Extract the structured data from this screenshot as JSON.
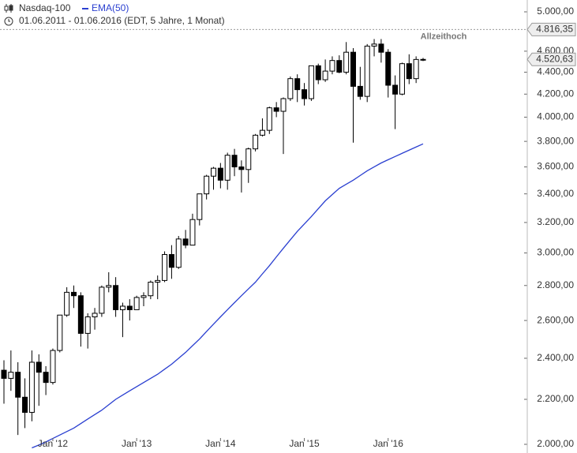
{
  "chart_data": {
    "type": "candlestick",
    "title": "Nasdaq-100",
    "subtitle": "01.06.2011 - 01.06.2016 (EDT, 5 Jahre, 1 Monat)",
    "log_scale": true,
    "categories": [
      null,
      null,
      null,
      null,
      null,
      null,
      null,
      "Jan '12",
      null,
      null,
      null,
      null,
      null,
      null,
      null,
      null,
      null,
      null,
      null,
      "Jan '13",
      null,
      null,
      null,
      null,
      null,
      null,
      null,
      null,
      null,
      null,
      null,
      "Jan '14",
      null,
      null,
      null,
      null,
      null,
      null,
      null,
      null,
      null,
      null,
      null,
      "Jan '15",
      null,
      null,
      null,
      null,
      null,
      null,
      null,
      null,
      null,
      null,
      null,
      "Jan '16",
      null,
      null,
      null,
      null,
      null
    ],
    "open": [
      2340,
      2300,
      2330,
      2210,
      2140,
      2380,
      2330,
      2280,
      2440,
      2630,
      2760,
      2740,
      2530,
      2620,
      2640,
      2790,
      2800,
      2660,
      2680,
      2660,
      2730,
      2740,
      2820,
      2830,
      2990,
      2910,
      3090,
      3050,
      3220,
      3400,
      3530,
      3590,
      3500,
      3690,
      3600,
      3580,
      3740,
      3850,
      3890,
      4080,
      4050,
      4160,
      4340,
      4240,
      4160,
      4460,
      4330,
      4410,
      4510,
      4400,
      4590,
      4270,
      4180,
      4650,
      4670,
      4590,
      4280,
      4200,
      4480,
      4340,
      4515
    ],
    "high": [
      2390,
      2440,
      2380,
      2300,
      2440,
      2420,
      2360,
      2450,
      2630,
      2790,
      2800,
      2760,
      2640,
      2670,
      2800,
      2880,
      2850,
      2700,
      2720,
      2740,
      2760,
      2830,
      2860,
      3010,
      3050,
      3110,
      3150,
      3260,
      3400,
      3540,
      3600,
      3630,
      3710,
      3740,
      3650,
      3750,
      3860,
      3990,
      4090,
      4130,
      4170,
      4360,
      4380,
      4300,
      4460,
      4480,
      4520,
      4550,
      4560,
      4690,
      4630,
      4450,
      4670,
      4720,
      4720,
      4620,
      4370,
      4490,
      4570,
      4550,
      4535
    ],
    "low": [
      2180,
      2240,
      2040,
      2070,
      2100,
      2170,
      2220,
      2270,
      2430,
      2620,
      2670,
      2460,
      2450,
      2550,
      2620,
      2760,
      2620,
      2510,
      2600,
      2660,
      2680,
      2720,
      2720,
      2820,
      2840,
      2900,
      3030,
      3050,
      3180,
      3360,
      3430,
      3440,
      3430,
      3530,
      3410,
      3480,
      3720,
      3840,
      3860,
      4000,
      3700,
      4140,
      4130,
      4100,
      4140,
      4290,
      4310,
      4380,
      4390,
      4380,
      3790,
      4150,
      4130,
      4550,
      4490,
      4170,
      3900,
      4190,
      4290,
      4300,
      4505
    ],
    "close": [
      2300,
      2330,
      2210,
      2140,
      2380,
      2330,
      2280,
      2440,
      2630,
      2760,
      2740,
      2530,
      2620,
      2640,
      2790,
      2800,
      2660,
      2680,
      2660,
      2730,
      2740,
      2820,
      2830,
      2990,
      2910,
      3090,
      3050,
      3220,
      3400,
      3530,
      3590,
      3500,
      3690,
      3600,
      3580,
      3740,
      3850,
      3890,
      4080,
      4050,
      4160,
      4340,
      4240,
      4160,
      4460,
      4330,
      4410,
      4510,
      4400,
      4590,
      4270,
      4180,
      4650,
      4670,
      4590,
      4280,
      4200,
      4480,
      4340,
      4520,
      4520.63
    ],
    "ema": {
      "name": "EMA(50)",
      "color": "#2a3fd0",
      "values": [
        null,
        null,
        null,
        null,
        1985,
        1997,
        2010,
        2025,
        2040,
        2055,
        2070,
        2090,
        2110,
        2130,
        2150,
        2175,
        2200,
        2220,
        2240,
        2260,
        2280,
        2300,
        2320,
        2345,
        2370,
        2400,
        2430,
        2465,
        2500,
        2540,
        2580,
        2620,
        2660,
        2700,
        2740,
        2780,
        2820,
        2870,
        2920,
        2975,
        3030,
        3085,
        3140,
        3190,
        3240,
        3295,
        3350,
        3395,
        3440,
        3470,
        3500,
        3535,
        3570,
        3600,
        3630,
        3655,
        3680,
        3705,
        3730,
        3755,
        3780
      ]
    },
    "ylim": [
      2000,
      5000
    ],
    "yticks": [
      {
        "value": 2000,
        "label": "2.000,00"
      },
      {
        "value": 2200,
        "label": "2.200,00"
      },
      {
        "value": 2400,
        "label": "2.400,00"
      },
      {
        "value": 2600,
        "label": "2.600,00"
      },
      {
        "value": 2800,
        "label": "2.800,00"
      },
      {
        "value": 3000,
        "label": "3.000,00"
      },
      {
        "value": 3200,
        "label": "3.200,00"
      },
      {
        "value": 3400,
        "label": "3.400,00"
      },
      {
        "value": 3600,
        "label": "3.600,00"
      },
      {
        "value": 3800,
        "label": "3.800,00"
      },
      {
        "value": 4000,
        "label": "4.000,00"
      },
      {
        "value": 4200,
        "label": "4.200,00"
      },
      {
        "value": 4400,
        "label": "4.400,00"
      },
      {
        "value": 4600,
        "label": "4.600,00"
      },
      {
        "value": 5000,
        "label": "5.000,00"
      }
    ],
    "all_time_high": {
      "value": 4816.35,
      "label": "4.816,35",
      "annotation": "Allzeithoch"
    },
    "last_price": {
      "value": 4520.63,
      "label": "4.520,63"
    }
  }
}
